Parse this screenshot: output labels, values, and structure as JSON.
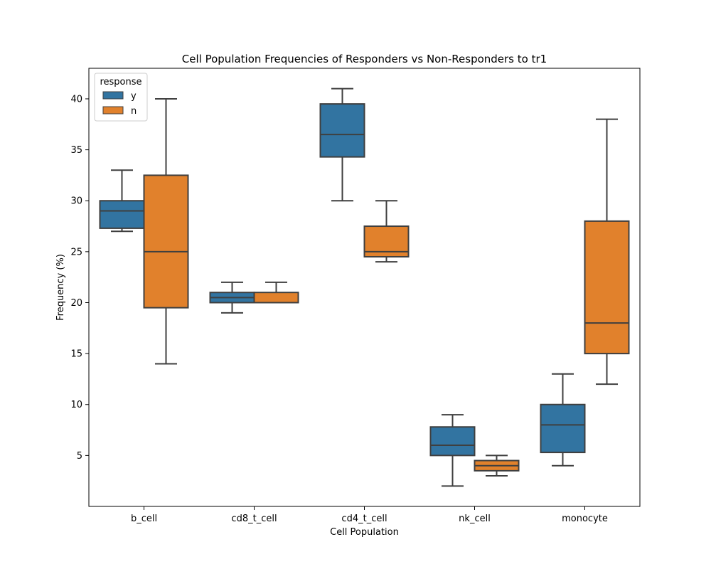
{
  "chart_data": {
    "type": "box",
    "title": "Cell Population Frequencies of Responders vs Non-Responders to tr1",
    "xlabel": "Cell Population",
    "ylabel": "Frequency (%)",
    "categories": [
      "b_cell",
      "cd8_t_cell",
      "cd4_t_cell",
      "nk_cell",
      "monocyte"
    ],
    "ylim": [
      0,
      43
    ],
    "yticks": [
      5,
      10,
      15,
      20,
      25,
      30,
      35,
      40
    ],
    "grid": false,
    "legend": {
      "title": "response",
      "placement": "top-left"
    },
    "series": [
      {
        "name": "y",
        "color": "#3274a1",
        "boxes": [
          {
            "whisker_low": 27,
            "q1": 27.3,
            "median": 29,
            "q3": 30,
            "whisker_high": 33
          },
          {
            "whisker_low": 19,
            "q1": 20,
            "median": 20.5,
            "q3": 21,
            "whisker_high": 22
          },
          {
            "whisker_low": 30,
            "q1": 34.3,
            "median": 36.5,
            "q3": 39.5,
            "whisker_high": 41
          },
          {
            "whisker_low": 2,
            "q1": 5,
            "median": 6,
            "q3": 7.8,
            "whisker_high": 9
          },
          {
            "whisker_low": 4,
            "q1": 5.3,
            "median": 8,
            "q3": 10,
            "whisker_high": 13
          }
        ]
      },
      {
        "name": "n",
        "color": "#e1812c",
        "boxes": [
          {
            "whisker_low": 14,
            "q1": 19.5,
            "median": 25,
            "q3": 32.5,
            "whisker_high": 40
          },
          {
            "whisker_low": 20,
            "q1": 20,
            "median": 20,
            "q3": 21,
            "whisker_high": 22
          },
          {
            "whisker_low": 24,
            "q1": 24.5,
            "median": 25,
            "q3": 27.5,
            "whisker_high": 30
          },
          {
            "whisker_low": 3,
            "q1": 3.5,
            "median": 4,
            "q3": 4.5,
            "whisker_high": 5
          },
          {
            "whisker_low": 12,
            "q1": 15,
            "median": 18,
            "q3": 28,
            "whisker_high": 38
          }
        ]
      }
    ]
  }
}
